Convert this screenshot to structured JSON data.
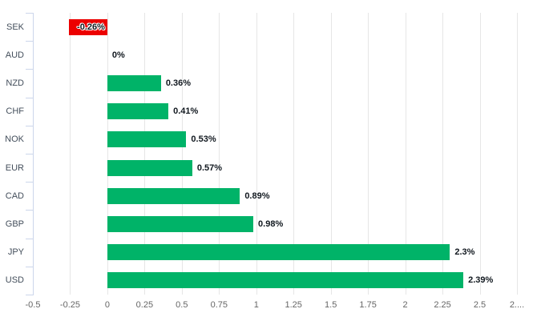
{
  "chart_data": {
    "type": "bar",
    "orientation": "horizontal",
    "title": "",
    "xlabel": "",
    "ylabel": "",
    "categories": [
      "SEK",
      "AUD",
      "NZD",
      "CHF",
      "NOK",
      "EUR",
      "CAD",
      "GBP",
      "JPY",
      "USD"
    ],
    "values": [
      -0.26,
      0,
      0.36,
      0.41,
      0.53,
      0.57,
      0.89,
      0.98,
      2.3,
      2.39
    ],
    "data_labels": [
      "-0.26%",
      "0%",
      "0.36%",
      "0.41%",
      "0.53%",
      "0.57%",
      "0.89%",
      "0.98%",
      "2.3%",
      "2.39%"
    ],
    "xlim": [
      -0.5,
      2.82
    ],
    "x_tick_values": [
      -0.5,
      -0.25,
      0,
      0.25,
      0.5,
      0.75,
      1,
      1.25,
      1.5,
      1.75,
      2,
      2.25,
      2.5,
      2.75
    ],
    "x_tick_labels": [
      "-0.5",
      "-0.25",
      "0",
      "0.25",
      "0.5",
      "0.75",
      "1",
      "1.25",
      "1.5",
      "1.75",
      "2",
      "2.25",
      "2.5",
      "2...."
    ],
    "grid": "vertical-gridlines",
    "legend": "none",
    "colors": {
      "positive_bar": "#00b368",
      "negative_bar": "#ec0000",
      "gridline": "#e6e6e6",
      "category_axis": "#ccd6eb",
      "category_label": "#434e5b",
      "value_label": "#11181f",
      "tick_label": "#666666",
      "background": "#ffffff"
    }
  }
}
